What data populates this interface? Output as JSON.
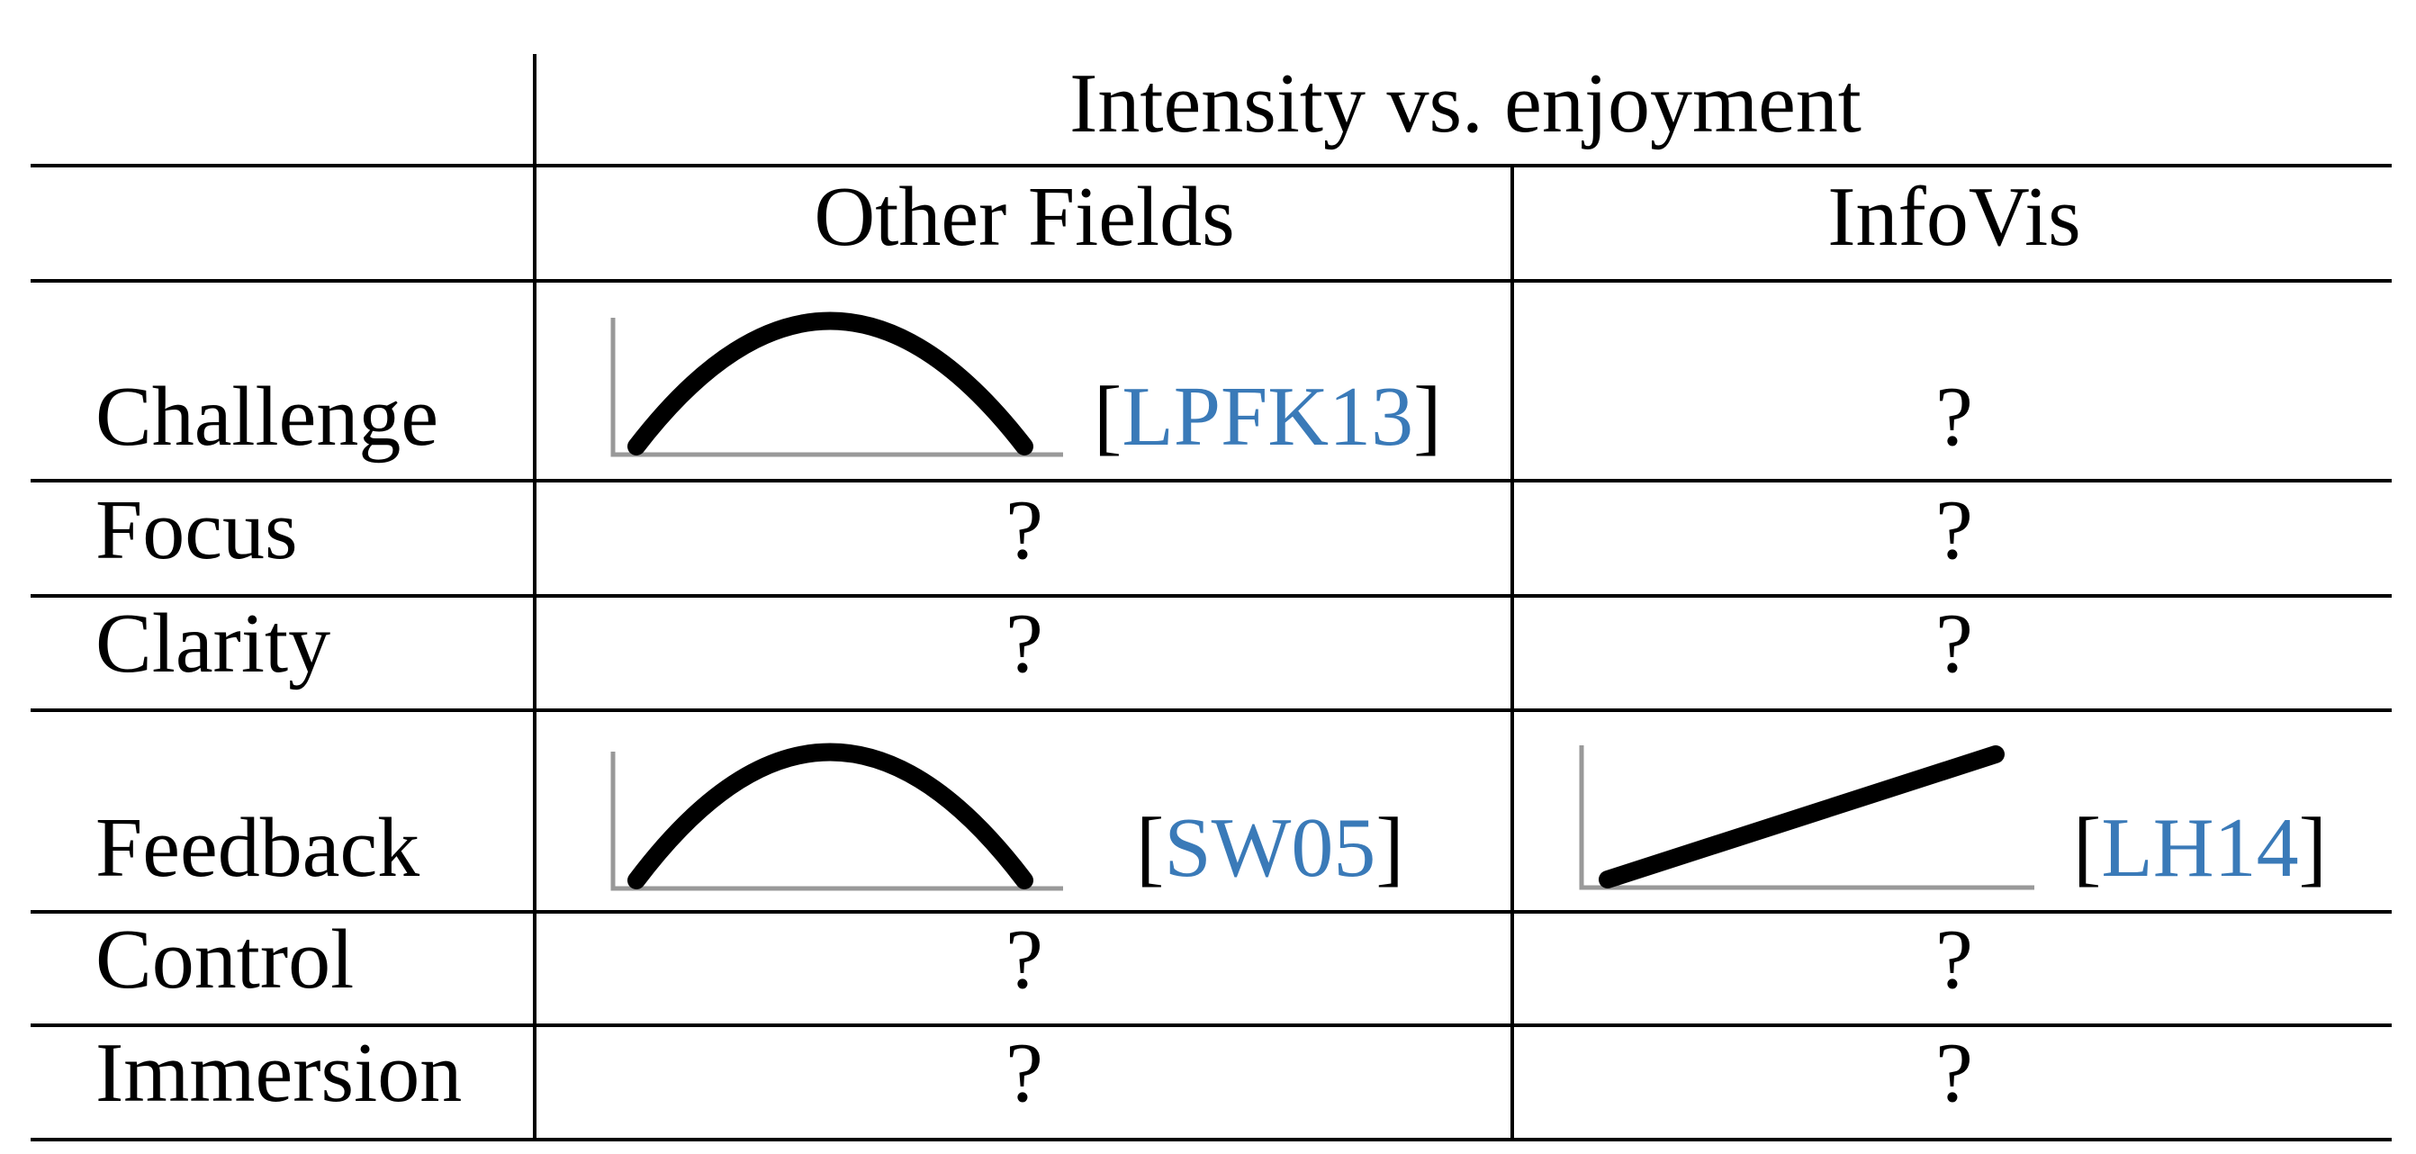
{
  "header": {
    "title": "Intensity vs. enjoyment",
    "columns": [
      "Other Fields",
      "InfoVis"
    ]
  },
  "table": {
    "rows": [
      {
        "label": "Challenge",
        "cells": [
          {
            "citation": [
              "[",
              "LPFK13",
              "]"
            ]
          },
          {
            "text": "?"
          }
        ]
      },
      {
        "label": "Focus",
        "cells": [
          {
            "text": "?"
          },
          {
            "text": "?"
          }
        ]
      },
      {
        "label": "Clarity",
        "cells": [
          {
            "text": "?"
          },
          {
            "text": "?"
          }
        ]
      },
      {
        "label": "Feedback",
        "cells": [
          {
            "citation": [
              "[",
              "SW05",
              "]"
            ]
          },
          {
            "citation": [
              "[",
              "LH14",
              "]"
            ]
          }
        ]
      },
      {
        "label": "Control",
        "cells": [
          {
            "text": "?"
          },
          {
            "text": "?"
          }
        ]
      },
      {
        "label": "Immersion",
        "cells": [
          {
            "text": "?"
          },
          {
            "text": "?"
          }
        ]
      }
    ]
  }
}
